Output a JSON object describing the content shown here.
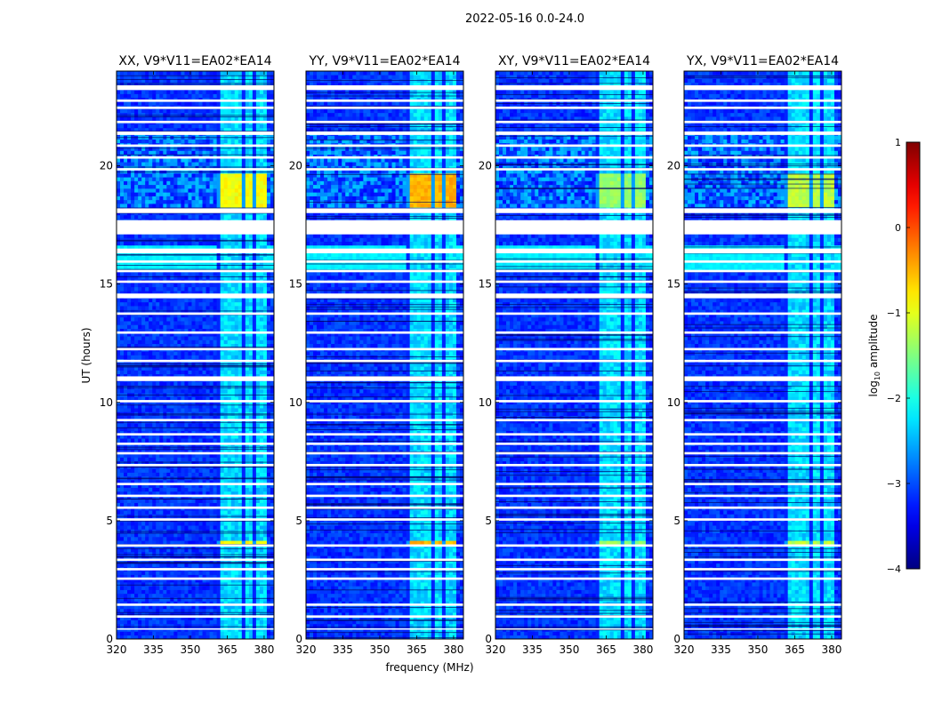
{
  "figure": {
    "suptitle": "2022-05-16 0.0-24.0",
    "ylabel": "UT (hours)",
    "xlabel": "frequency (MHz)",
    "colorbar_label_main": "log",
    "colorbar_label_sub": "10",
    "colorbar_label_tail": " amplitude"
  },
  "chart_data": {
    "type": "heatmap",
    "panels": [
      {
        "title": "XX, V9*V11=EA02*EA14",
        "product": "XX"
      },
      {
        "title": "YY, V9*V11=EA02*EA14",
        "product": "YY"
      },
      {
        "title": "XY, V9*V11=EA02*EA14",
        "product": "XY"
      },
      {
        "title": "YX, V9*V11=EA02*EA14",
        "product": "YX"
      }
    ],
    "xlabel": "frequency (MHz)",
    "ylabel": "UT (hours)",
    "xlim": [
      320,
      384
    ],
    "ylim": [
      0,
      24
    ],
    "xticks": [
      320,
      335,
      350,
      365,
      380
    ],
    "yticks": [
      0,
      5,
      10,
      15,
      20
    ],
    "colorbar": {
      "label": "log10 amplitude",
      "range": [
        -4,
        1
      ],
      "ticks": [
        1,
        0,
        -1,
        -2,
        -3,
        -4
      ],
      "tick_labels": [
        "1",
        "0",
        "−1",
        "−2",
        "−3",
        "−4"
      ],
      "colormap": "jet"
    },
    "bright_band_MHz": [
      361,
      381
    ],
    "bright_subbands_MHz": [
      [
        361,
        366
      ],
      [
        366,
        371
      ],
      [
        371,
        376
      ],
      [
        376,
        380
      ]
    ],
    "flagged_hours": [
      [
        23.2,
        23.4
      ],
      [
        22.7,
        22.8
      ],
      [
        22.4,
        22.5
      ],
      [
        21.8,
        21.9
      ],
      [
        21.3,
        21.45
      ],
      [
        20.8,
        20.9
      ],
      [
        20.3,
        20.4
      ],
      [
        19.8,
        19.9
      ],
      [
        18.0,
        18.2
      ],
      [
        17.1,
        17.7
      ],
      [
        16.3,
        16.5
      ],
      [
        15.9,
        16.0
      ],
      [
        15.5,
        15.6
      ],
      [
        15.05,
        15.15
      ],
      [
        14.4,
        14.6
      ],
      [
        13.7,
        13.8
      ],
      [
        12.9,
        13.0
      ],
      [
        12.2,
        12.3
      ],
      [
        11.7,
        11.8
      ],
      [
        10.9,
        11.1
      ],
      [
        10.0,
        10.1
      ],
      [
        9.2,
        9.3
      ],
      [
        8.6,
        8.7
      ],
      [
        8.2,
        8.3
      ],
      [
        7.8,
        7.9
      ],
      [
        7.3,
        7.4
      ],
      [
        6.5,
        6.6
      ],
      [
        6.0,
        6.1
      ],
      [
        5.5,
        5.6
      ],
      [
        5.0,
        5.1
      ],
      [
        3.9,
        4.0
      ],
      [
        3.3,
        3.4
      ],
      [
        2.9,
        3.0
      ],
      [
        2.5,
        2.6
      ],
      [
        1.4,
        1.5
      ],
      [
        0.9,
        1.0
      ],
      [
        0.4,
        0.45
      ]
    ],
    "hot_hours": [
      [
        18.2,
        19.7
      ],
      [
        4.0,
        4.2
      ]
    ],
    "hot_levels_log10": {
      "XX": -0.9,
      "YY": -0.5,
      "XY": -1.4,
      "YX": -1.2
    }
  }
}
